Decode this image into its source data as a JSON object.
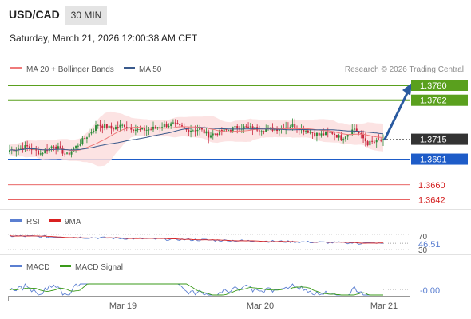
{
  "header": {
    "symbol": "USD/CAD",
    "timeframe": "30 MIN",
    "datetime": "Saturday, March 21, 2026 12:00:38 AM CET"
  },
  "attribution": "Research © 2026 Trading Central",
  "colors": {
    "up_candle": "#2e8b3a",
    "down_candle": "#c8243c",
    "resistance": "#5aa01e",
    "support": "#1e5cc8",
    "target": "#e03030",
    "current": "#333333",
    "ma20": "#ef7a7a",
    "ma50": "#3a5a8c",
    "band_fill": "#fbdede",
    "rsi": "#5b7fd1",
    "rsi_ma": "#d92020",
    "macd": "#5b7fd1",
    "macd_signal": "#3a9a1a",
    "arrow": "#2a5aa0"
  },
  "chart_data": [
    {
      "type": "candlestick",
      "title": "USD/CAD",
      "legend": [
        {
          "name": "MA 20 + Bollinger Bands",
          "color": "#ef7a7a"
        },
        {
          "name": "MA 50",
          "color": "#3a5a8c"
        }
      ],
      "legend_position": "top-left",
      "x_ticks": [
        "Mar 19",
        "Mar 20",
        "Mar 21"
      ],
      "ylim": [
        1.363,
        1.3795
      ],
      "grid": false,
      "last_price": 1.3715,
      "levels": [
        {
          "label": "1.3780",
          "value": 1.378,
          "kind": "resistance"
        },
        {
          "label": "1.3762",
          "value": 1.3762,
          "kind": "resistance"
        },
        {
          "label": "1.3715",
          "value": 1.3715,
          "kind": "current"
        },
        {
          "label": "1.3691",
          "value": 1.3691,
          "kind": "support"
        },
        {
          "label": "1.3660",
          "value": 1.366,
          "kind": "target"
        },
        {
          "label": "1.3642",
          "value": 1.3642,
          "kind": "target"
        }
      ],
      "waypoints": [
        [
          0,
          1.3702
        ],
        [
          8,
          1.3706
        ],
        [
          14,
          1.3698
        ],
        [
          20,
          1.3708
        ],
        [
          26,
          1.3696
        ],
        [
          34,
          1.3716
        ],
        [
          40,
          1.3733
        ],
        [
          46,
          1.3728
        ],
        [
          52,
          1.3732
        ],
        [
          58,
          1.3726
        ],
        [
          64,
          1.3727
        ],
        [
          68,
          1.3731
        ],
        [
          74,
          1.3733
        ],
        [
          80,
          1.3726
        ],
        [
          86,
          1.3727
        ],
        [
          90,
          1.372
        ],
        [
          96,
          1.3724
        ],
        [
          104,
          1.373
        ],
        [
          110,
          1.3728
        ],
        [
          116,
          1.3727
        ],
        [
          122,
          1.3728
        ],
        [
          128,
          1.3732
        ],
        [
          134,
          1.3726
        ],
        [
          140,
          1.372
        ],
        [
          146,
          1.3723
        ],
        [
          150,
          1.3716
        ],
        [
          156,
          1.3728
        ],
        [
          162,
          1.371
        ],
        [
          166,
          1.3712
        ],
        [
          170,
          1.3716
        ]
      ],
      "bars": 170
    },
    {
      "type": "line",
      "name": "RSI",
      "legend": [
        {
          "name": "RSI",
          "color": "#5b7fd1"
        },
        {
          "name": "9MA",
          "color": "#d92020"
        }
      ],
      "y_ticks": [
        "70",
        "30"
      ],
      "ylim": [
        30,
        70
      ],
      "last_value": 46.51,
      "last_label": "46.51"
    },
    {
      "type": "line",
      "name": "MACD",
      "legend": [
        {
          "name": "MACD",
          "color": "#5b7fd1"
        },
        {
          "name": "MACD Signal",
          "color": "#3a9a1a"
        }
      ],
      "last_label": "-0.00"
    }
  ]
}
